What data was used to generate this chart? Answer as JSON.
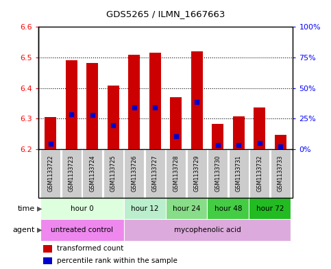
{
  "title": "GDS5265 / ILMN_1667663",
  "samples": [
    "GSM1133722",
    "GSM1133723",
    "GSM1133724",
    "GSM1133725",
    "GSM1133726",
    "GSM1133727",
    "GSM1133728",
    "GSM1133729",
    "GSM1133730",
    "GSM1133731",
    "GSM1133732",
    "GSM1133733"
  ],
  "bar_tops": [
    6.305,
    6.49,
    6.482,
    6.408,
    6.508,
    6.515,
    6.37,
    6.52,
    6.284,
    6.308,
    6.336,
    6.248
  ],
  "bar_bottom": 6.2,
  "blue_dot_values": [
    6.218,
    6.315,
    6.313,
    6.278,
    6.337,
    6.337,
    6.243,
    6.355,
    6.213,
    6.213,
    6.221,
    6.21
  ],
  "ylim_left": [
    6.2,
    6.6
  ],
  "ylim_right": [
    0,
    100
  ],
  "yticks_left": [
    6.2,
    6.3,
    6.4,
    6.5,
    6.6
  ],
  "yticks_right": [
    0,
    25,
    50,
    75,
    100
  ],
  "ytick_labels_right": [
    "0%",
    "25%",
    "50%",
    "75%",
    "100%"
  ],
  "bar_color": "#cc0000",
  "dot_color": "#0000cc",
  "time_groups": [
    {
      "label": "hour 0",
      "start": 0,
      "end": 3,
      "color": "#ddffdd"
    },
    {
      "label": "hour 12",
      "start": 4,
      "end": 5,
      "color": "#bbeecc"
    },
    {
      "label": "hour 24",
      "start": 6,
      "end": 7,
      "color": "#88dd88"
    },
    {
      "label": "hour 48",
      "start": 8,
      "end": 9,
      "color": "#44cc44"
    },
    {
      "label": "hour 72",
      "start": 10,
      "end": 11,
      "color": "#22bb22"
    }
  ],
  "agent_groups": [
    {
      "label": "untreated control",
      "start": 0,
      "end": 3,
      "color": "#ee88ee"
    },
    {
      "label": "mycophenolic acid",
      "start": 4,
      "end": 11,
      "color": "#ddaadd"
    }
  ],
  "sample_bg": "#cccccc"
}
